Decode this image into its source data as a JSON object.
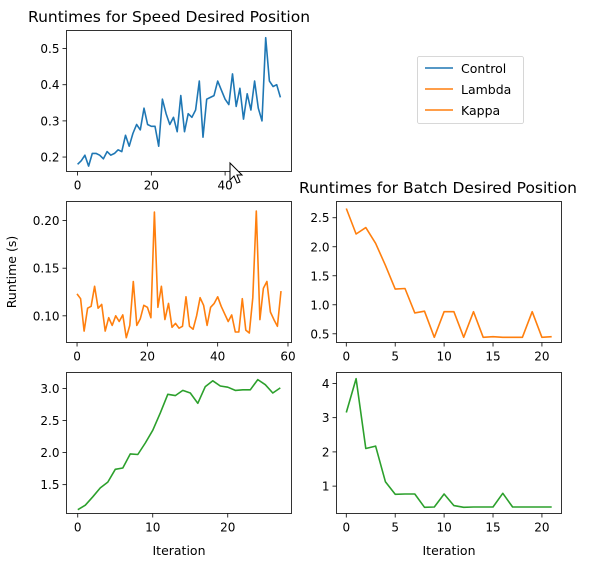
{
  "chart_data": [
    {
      "type": "line",
      "title": "Runtimes for Speed Desired Position",
      "xlabel": "",
      "ylabel": "",
      "xlim": [
        -3,
        58
      ],
      "ylim": [
        0.16,
        0.55
      ],
      "xticks": [
        0,
        20,
        40
      ],
      "yticks": [
        0.2,
        0.3,
        0.4,
        0.5
      ],
      "ytick_labels": [
        "0.2",
        "0.3",
        "0.4",
        "0.5"
      ],
      "series": [
        {
          "name": "Control",
          "color": "#1f77b4",
          "x": [
            0,
            1,
            2,
            3,
            4,
            5,
            6,
            7,
            8,
            9,
            10,
            11,
            12,
            13,
            14,
            15,
            16,
            17,
            18,
            19,
            20,
            21,
            22,
            23,
            24,
            25,
            26,
            27,
            28,
            29,
            30,
            31,
            32,
            33,
            34,
            35,
            36,
            37,
            38,
            39,
            40,
            41,
            42,
            43,
            44,
            45,
            46,
            47,
            48,
            49,
            50,
            51,
            52,
            53,
            54,
            55
          ],
          "y": [
            0.18,
            0.19,
            0.205,
            0.175,
            0.21,
            0.21,
            0.205,
            0.195,
            0.215,
            0.205,
            0.21,
            0.22,
            0.215,
            0.26,
            0.23,
            0.265,
            0.29,
            0.275,
            0.335,
            0.29,
            0.285,
            0.285,
            0.23,
            0.36,
            0.32,
            0.29,
            0.31,
            0.27,
            0.37,
            0.27,
            0.32,
            0.31,
            0.33,
            0.41,
            0.255,
            0.36,
            0.365,
            0.37,
            0.41,
            0.385,
            0.36,
            0.345,
            0.43,
            0.34,
            0.39,
            0.305,
            0.375,
            0.33,
            0.41,
            0.335,
            0.3,
            0.53,
            0.41,
            0.395,
            0.4,
            0.365
          ]
        }
      ],
      "legend": {
        "position": "upper-right",
        "entries": [
          {
            "name": "Control",
            "color": "#1f77b4"
          },
          {
            "name": "Lambda",
            "color": "#ff7f0e"
          },
          {
            "name": "Kappa",
            "color": "#ff7f0e"
          }
        ]
      }
    },
    {
      "type": "line",
      "title": "",
      "xlabel": "",
      "ylabel": "Runtime (s)",
      "xlim": [
        -3,
        61
      ],
      "ylim": [
        0.072,
        0.22
      ],
      "xticks": [
        0,
        20,
        40,
        60
      ],
      "yticks": [
        0.1,
        0.15,
        0.2
      ],
      "ytick_labels": [
        "0.10",
        "0.15",
        "0.20"
      ],
      "series": [
        {
          "color": "#ff7f0e",
          "x": [
            0,
            1,
            2,
            3,
            4,
            5,
            6,
            7,
            8,
            9,
            10,
            11,
            12,
            13,
            14,
            15,
            16,
            17,
            18,
            19,
            20,
            21,
            22,
            23,
            24,
            25,
            26,
            27,
            28,
            29,
            30,
            31,
            32,
            33,
            34,
            35,
            36,
            37,
            38,
            39,
            40,
            41,
            42,
            43,
            44,
            45,
            46,
            47,
            48,
            49,
            50,
            51,
            52,
            53,
            54,
            55,
            56,
            57,
            58
          ],
          "y": [
            0.123,
            0.118,
            0.084,
            0.108,
            0.11,
            0.131,
            0.108,
            0.112,
            0.084,
            0.098,
            0.09,
            0.1,
            0.094,
            0.101,
            0.077,
            0.09,
            0.136,
            0.09,
            0.097,
            0.111,
            0.109,
            0.098,
            0.209,
            0.109,
            0.131,
            0.096,
            0.113,
            0.088,
            0.092,
            0.087,
            0.089,
            0.12,
            0.089,
            0.086,
            0.1,
            0.119,
            0.111,
            0.09,
            0.109,
            0.113,
            0.12,
            0.11,
            0.102,
            0.094,
            0.101,
            0.083,
            0.083,
            0.118,
            0.085,
            0.082,
            0.119,
            0.21,
            0.096,
            0.129,
            0.136,
            0.104,
            0.096,
            0.089,
            0.126
          ]
        }
      ]
    },
    {
      "type": "line",
      "title": "Runtimes for Batch Desired Position",
      "xlabel": "",
      "ylabel": "",
      "xlim": [
        -1,
        22
      ],
      "ylim": [
        0.35,
        2.78
      ],
      "xticks": [
        0,
        5,
        10,
        15,
        20
      ],
      "yticks": [
        0.5,
        1.0,
        1.5,
        2.0,
        2.5
      ],
      "ytick_labels": [
        "0.5",
        "1.0",
        "1.5",
        "2.0",
        "2.5"
      ],
      "series": [
        {
          "color": "#ff7f0e",
          "x": [
            0,
            1,
            2,
            3,
            4,
            5,
            6,
            7,
            8,
            9,
            10,
            11,
            12,
            13,
            14,
            15,
            16,
            17,
            18,
            19,
            20,
            21
          ],
          "y": [
            2.66,
            2.22,
            2.33,
            2.06,
            1.68,
            1.27,
            1.28,
            0.86,
            0.89,
            0.44,
            0.88,
            0.88,
            0.44,
            0.88,
            0.44,
            0.45,
            0.44,
            0.44,
            0.44,
            0.88,
            0.44,
            0.45
          ]
        }
      ]
    },
    {
      "type": "line",
      "title": "",
      "xlabel": "Iteration",
      "ylabel": "",
      "xlim": [
        -1.5,
        28.5
      ],
      "ylim": [
        1.05,
        3.25
      ],
      "xticks": [
        0,
        10,
        20
      ],
      "yticks": [
        1.5,
        2.0,
        2.5,
        3.0
      ],
      "ytick_labels": [
        "1.5",
        "2.0",
        "2.5",
        "3.0"
      ],
      "series": [
        {
          "color": "#2ca02c",
          "x": [
            0,
            1,
            2,
            3,
            4,
            5,
            6,
            7,
            8,
            9,
            10,
            11,
            12,
            13,
            14,
            15,
            16,
            17,
            18,
            19,
            20,
            21,
            22,
            23,
            24,
            25,
            26,
            27
          ],
          "y": [
            1.11,
            1.18,
            1.31,
            1.45,
            1.54,
            1.74,
            1.76,
            1.98,
            1.97,
            2.15,
            2.35,
            2.62,
            2.91,
            2.89,
            2.97,
            2.93,
            2.77,
            3.03,
            3.12,
            3.04,
            3.02,
            2.97,
            2.98,
            2.98,
            3.14,
            3.06,
            2.93,
            3.01
          ]
        }
      ]
    },
    {
      "type": "line",
      "title": "",
      "xlabel": "Iteration",
      "ylabel": "",
      "xlim": [
        -1,
        22
      ],
      "ylim": [
        0.2,
        4.32
      ],
      "xticks": [
        0,
        5,
        10,
        15,
        20
      ],
      "yticks": [
        1,
        2,
        3,
        4
      ],
      "ytick_labels": [
        "1",
        "2",
        "3",
        "4"
      ],
      "series": [
        {
          "color": "#2ca02c",
          "x": [
            0,
            1,
            2,
            3,
            4,
            5,
            6,
            7,
            8,
            9,
            10,
            11,
            12,
            13,
            14,
            15,
            16,
            17,
            18,
            19,
            20,
            21
          ],
          "y": [
            3.15,
            4.14,
            2.1,
            2.17,
            1.13,
            0.76,
            0.77,
            0.77,
            0.38,
            0.39,
            0.77,
            0.43,
            0.38,
            0.39,
            0.39,
            0.39,
            0.79,
            0.39,
            0.39,
            0.39,
            0.39,
            0.39
          ]
        }
      ]
    }
  ]
}
